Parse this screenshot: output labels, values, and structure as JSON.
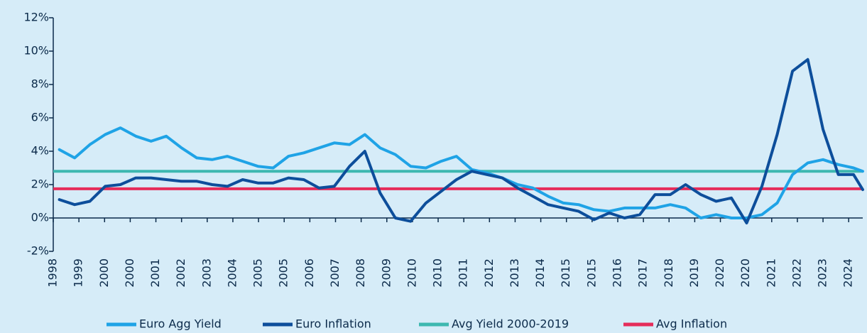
{
  "chart_data": {
    "type": "line",
    "x": [
      1998.5,
      1999,
      1999.5,
      2000,
      2000.5,
      2001,
      2001.5,
      2002,
      2002.5,
      2003,
      2003.5,
      2004,
      2004.5,
      2005,
      2005.5,
      2006,
      2006.5,
      2007,
      2007.5,
      2008,
      2008.5,
      2009,
      2009.5,
      2010,
      2010.5,
      2011,
      2011.5,
      2012,
      2012.5,
      2013,
      2013.5,
      2014,
      2014.5,
      2015,
      2015.5,
      2016,
      2016.5,
      2017,
      2017.5,
      2018,
      2018.5,
      2019,
      2019.5,
      2020,
      2020.5,
      2021,
      2021.5,
      2022,
      2022.5,
      2023,
      2023.5,
      2024,
      2024.5,
      2024.8
    ],
    "xlim": [
      1998.3,
      2024.8
    ],
    "xticks": [
      {
        "value": 1998.3,
        "label": "1998"
      },
      {
        "value": 1999.14,
        "label": "1999"
      },
      {
        "value": 1999.98,
        "label": "2000"
      },
      {
        "value": 2000.82,
        "label": "2000"
      },
      {
        "value": 2001.66,
        "label": "2001"
      },
      {
        "value": 2002.5,
        "label": "2002"
      },
      {
        "value": 2003.34,
        "label": "2003"
      },
      {
        "value": 2004.18,
        "label": "2004"
      },
      {
        "value": 2005.02,
        "label": "2005"
      },
      {
        "value": 2005.86,
        "label": "2005"
      },
      {
        "value": 2006.7,
        "label": "2006"
      },
      {
        "value": 2007.54,
        "label": "2007"
      },
      {
        "value": 2008.38,
        "label": "2008"
      },
      {
        "value": 2009.22,
        "label": "2009"
      },
      {
        "value": 2010.06,
        "label": "2010"
      },
      {
        "value": 2010.9,
        "label": "2010"
      },
      {
        "value": 2011.74,
        "label": "2011"
      },
      {
        "value": 2012.58,
        "label": "2012"
      },
      {
        "value": 2013.42,
        "label": "2013"
      },
      {
        "value": 2014.26,
        "label": "2014"
      },
      {
        "value": 2015.1,
        "label": "2015"
      },
      {
        "value": 2015.94,
        "label": "2015"
      },
      {
        "value": 2016.78,
        "label": "2016"
      },
      {
        "value": 2017.62,
        "label": "2017"
      },
      {
        "value": 2018.46,
        "label": "2018"
      },
      {
        "value": 2019.3,
        "label": "2019"
      },
      {
        "value": 2020.14,
        "label": "2020"
      },
      {
        "value": 2020.98,
        "label": "2020"
      },
      {
        "value": 2021.82,
        "label": "2021"
      },
      {
        "value": 2022.66,
        "label": "2022"
      },
      {
        "value": 2023.5,
        "label": "2023"
      },
      {
        "value": 2024.34,
        "label": "2024"
      }
    ],
    "ylim": [
      -2,
      12
    ],
    "yticks": [
      {
        "value": -2,
        "label": "-2%"
      },
      {
        "value": 0,
        "label": "0%"
      },
      {
        "value": 2,
        "label": "2%"
      },
      {
        "value": 4,
        "label": "4%"
      },
      {
        "value": 6,
        "label": "6%"
      },
      {
        "value": 8,
        "label": "8%"
      },
      {
        "value": 10,
        "label": "10%"
      },
      {
        "value": 12,
        "label": "12%"
      }
    ],
    "series": [
      {
        "name": "Euro Agg Yield",
        "color": "#1fa3e6",
        "values": [
          4.1,
          3.6,
          4.4,
          5.0,
          5.4,
          4.9,
          4.6,
          4.9,
          4.2,
          3.6,
          3.5,
          3.7,
          3.4,
          3.1,
          3.0,
          3.7,
          3.9,
          4.2,
          4.5,
          4.4,
          5.0,
          4.2,
          3.8,
          3.1,
          3.0,
          3.4,
          3.7,
          2.9,
          2.7,
          2.4,
          2.0,
          1.8,
          1.3,
          0.9,
          0.8,
          0.5,
          0.4,
          0.6,
          0.6,
          0.6,
          0.8,
          0.6,
          0.0,
          0.2,
          0.0,
          0.0,
          0.2,
          0.9,
          2.6,
          3.3,
          3.5,
          3.2,
          3.0,
          2.8
        ]
      },
      {
        "name": "Euro Inflation",
        "color": "#0d4e9b",
        "values": [
          1.1,
          0.8,
          1.0,
          1.9,
          2.0,
          2.4,
          2.4,
          2.3,
          2.2,
          2.2,
          2.0,
          1.9,
          2.3,
          2.1,
          2.1,
          2.4,
          2.3,
          1.8,
          1.9,
          3.1,
          4.0,
          1.5,
          0.0,
          -0.2,
          0.9,
          1.6,
          2.3,
          2.8,
          2.6,
          2.4,
          1.8,
          1.3,
          0.8,
          0.6,
          0.4,
          -0.1,
          0.3,
          0.0,
          0.2,
          1.4,
          1.4,
          2.0,
          1.4,
          1.0,
          1.2,
          -0.3,
          1.9,
          5.0,
          8.8,
          9.5,
          5.3,
          2.6,
          2.6,
          1.7
        ]
      },
      {
        "name": "Avg Yield 2000-2019",
        "color": "#3db8b0",
        "value": 2.8
      },
      {
        "name": "Avg Inflation",
        "color": "#e52d5a",
        "value": 1.75
      }
    ]
  }
}
